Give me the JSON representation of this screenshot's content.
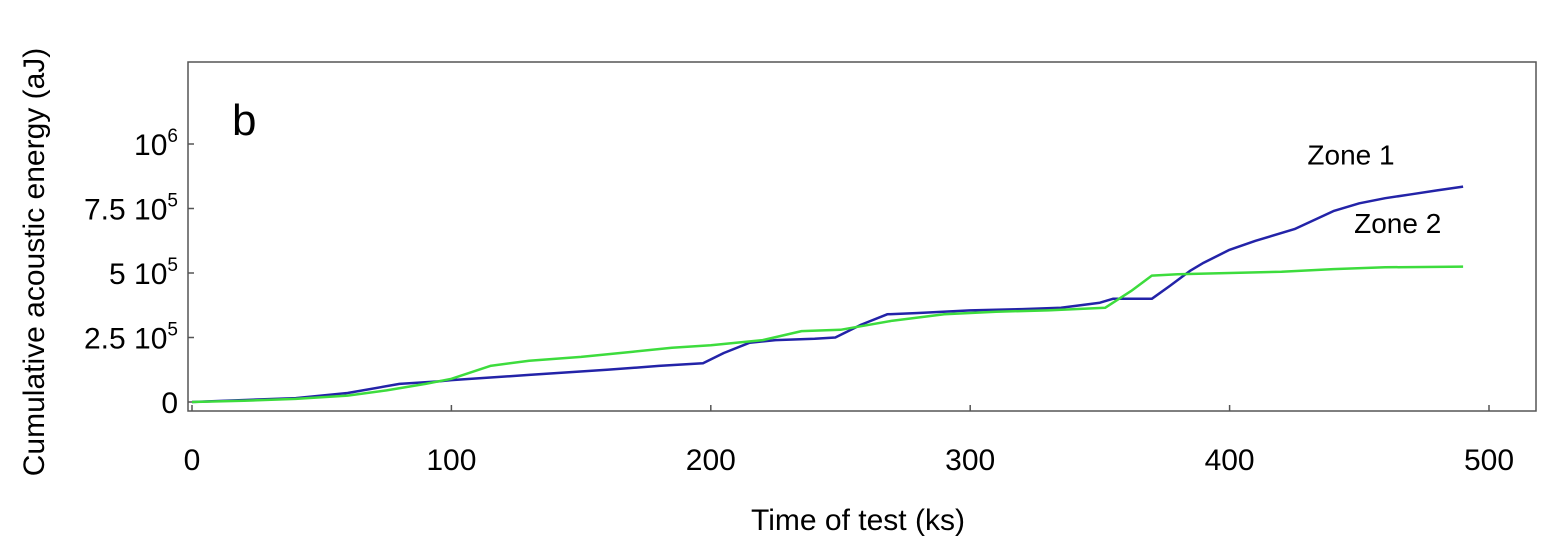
{
  "chart_data": {
    "type": "line",
    "panel_label": "b",
    "xlabel": "Time of test (ks)",
    "ylabel": "Cumulative acoustic energy (aJ)",
    "xlim": [
      0,
      500
    ],
    "ylim": [
      -25000,
      1250000
    ],
    "grid": false,
    "x_ticks": [
      {
        "value": 0,
        "label": "0"
      },
      {
        "value": 100,
        "label": "100"
      },
      {
        "value": 200,
        "label": "200"
      },
      {
        "value": 300,
        "label": "300"
      },
      {
        "value": 400,
        "label": "400"
      },
      {
        "value": 500,
        "label": "500"
      }
    ],
    "y_ticks": [
      {
        "value": 0,
        "base": "0",
        "exp": ""
      },
      {
        "value": 250000,
        "base": "2.5 10",
        "exp": "5"
      },
      {
        "value": 500000,
        "base": "5 10",
        "exp": "5"
      },
      {
        "value": 750000,
        "base": "7.5 10",
        "exp": "5"
      },
      {
        "value": 1000000,
        "base": "10",
        "exp": "6"
      }
    ],
    "series": [
      {
        "name": "Zone 1",
        "color": "#2323a8",
        "points": [
          [
            0,
            0
          ],
          [
            40,
            15000
          ],
          [
            60,
            35000
          ],
          [
            80,
            70000
          ],
          [
            95,
            80000
          ],
          [
            100,
            85000
          ],
          [
            130,
            105000
          ],
          [
            160,
            125000
          ],
          [
            180,
            140000
          ],
          [
            197,
            150000
          ],
          [
            205,
            190000
          ],
          [
            215,
            230000
          ],
          [
            225,
            240000
          ],
          [
            240,
            245000
          ],
          [
            248,
            250000
          ],
          [
            258,
            300000
          ],
          [
            268,
            340000
          ],
          [
            280,
            345000
          ],
          [
            300,
            355000
          ],
          [
            320,
            360000
          ],
          [
            335,
            365000
          ],
          [
            350,
            385000
          ],
          [
            355,
            400000
          ],
          [
            370,
            400000
          ],
          [
            377,
            450000
          ],
          [
            385,
            510000
          ],
          [
            390,
            540000
          ],
          [
            400,
            590000
          ],
          [
            410,
            625000
          ],
          [
            425,
            670000
          ],
          [
            440,
            740000
          ],
          [
            450,
            770000
          ],
          [
            460,
            790000
          ],
          [
            470,
            805000
          ],
          [
            480,
            820000
          ],
          [
            490,
            835000
          ]
        ]
      },
      {
        "name": "Zone 2",
        "color": "#3ddc3d",
        "points": [
          [
            0,
            0
          ],
          [
            20,
            5000
          ],
          [
            40,
            12000
          ],
          [
            60,
            25000
          ],
          [
            75,
            45000
          ],
          [
            90,
            70000
          ],
          [
            100,
            90000
          ],
          [
            115,
            140000
          ],
          [
            130,
            160000
          ],
          [
            150,
            175000
          ],
          [
            170,
            195000
          ],
          [
            185,
            210000
          ],
          [
            200,
            220000
          ],
          [
            220,
            240000
          ],
          [
            235,
            275000
          ],
          [
            250,
            280000
          ],
          [
            270,
            315000
          ],
          [
            290,
            340000
          ],
          [
            310,
            350000
          ],
          [
            330,
            355000
          ],
          [
            352,
            365000
          ],
          [
            362,
            430000
          ],
          [
            370,
            490000
          ],
          [
            380,
            495000
          ],
          [
            400,
            500000
          ],
          [
            420,
            505000
          ],
          [
            440,
            515000
          ],
          [
            460,
            522000
          ],
          [
            490,
            525000
          ]
        ]
      }
    ],
    "annotations": [
      {
        "text": "Zone 1",
        "x": 430,
        "y": 920000
      },
      {
        "text": "Zone 2",
        "x": 448,
        "y": 655000
      }
    ]
  }
}
